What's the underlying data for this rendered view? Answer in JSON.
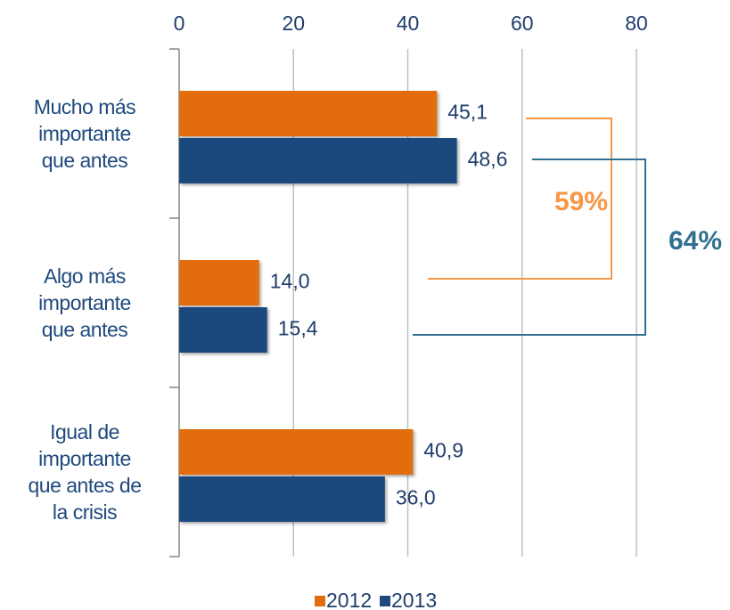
{
  "chart_data": {
    "type": "bar",
    "orientation": "horizontal",
    "categories": [
      "Mucho más\nimportante\nque antes",
      "Algo más\nimportante\nque antes",
      "Igual de\nimportante\nque antes de\nla crisis"
    ],
    "series": [
      {
        "name": "2012",
        "color": "#e36c0a",
        "values": [
          45.1,
          14.0,
          40.9
        ],
        "value_labels": [
          "45,1",
          "14,0",
          "40,9"
        ]
      },
      {
        "name": "2013",
        "color": "#1f497d",
        "values": [
          48.6,
          15.4,
          36.0
        ],
        "value_labels": [
          "48,6",
          "15,4",
          "36,0"
        ]
      }
    ],
    "xlim": [
      0,
      80
    ],
    "xticks": [
      0,
      20,
      40,
      60,
      80
    ],
    "grid": true,
    "legend": "bottom",
    "annotations": [
      {
        "text": "59%",
        "color": "#f79646"
      },
      {
        "text": "64%",
        "color": "#31708f"
      }
    ]
  }
}
